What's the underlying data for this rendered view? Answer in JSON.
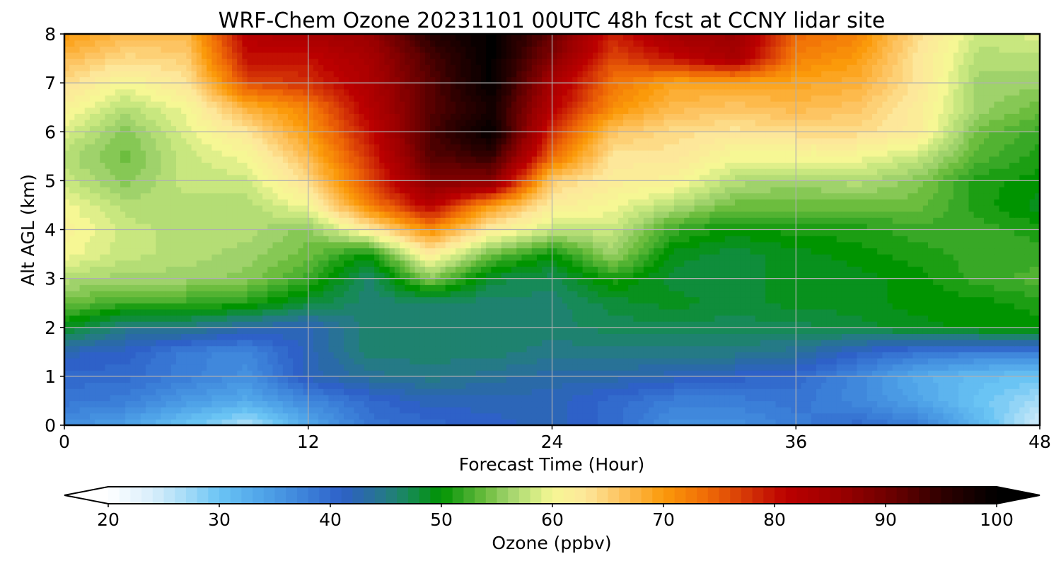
{
  "chart_data": {
    "type": "heatmap",
    "title": "WRF-Chem Ozone  20231101 00UTC 48h fcst at CCNY lidar site",
    "xlabel": "Forecast Time (Hour)",
    "ylabel": "Alt AGL (km)",
    "xlim": [
      0,
      48
    ],
    "ylim": [
      0,
      8
    ],
    "x_ticks": [
      "0",
      "12",
      "24",
      "36",
      "48"
    ],
    "y_ticks": [
      "0",
      "1",
      "2",
      "3",
      "4",
      "5",
      "6",
      "7",
      "8"
    ],
    "grid": true,
    "x": [
      0,
      3,
      6,
      9,
      12,
      15,
      18,
      21,
      24,
      27,
      30,
      33,
      36,
      39,
      42,
      45,
      48
    ],
    "y": [
      0,
      0.5,
      1,
      1.5,
      2,
      2.5,
      3,
      3.5,
      4,
      4.5,
      5,
      5.5,
      6,
      6.5,
      7,
      7.5,
      8
    ],
    "z": [
      [
        36,
        34,
        30,
        26,
        33,
        39,
        40,
        41,
        42,
        40,
        36,
        36,
        38,
        40,
        38,
        32,
        24
      ],
      [
        39,
        38,
        35,
        33,
        37,
        40,
        42,
        42,
        42,
        40,
        38,
        38,
        39,
        37,
        34,
        30,
        27
      ],
      [
        40,
        40,
        38,
        36,
        42,
        44,
        45,
        44,
        43,
        43,
        42,
        41,
        40,
        37,
        33,
        31,
        30
      ],
      [
        42,
        41,
        38,
        37,
        42,
        46,
        46,
        46,
        45,
        45,
        45,
        45,
        44,
        41,
        39,
        38,
        38
      ],
      [
        49,
        45,
        45,
        43,
        42,
        46,
        46,
        46,
        46,
        47,
        47,
        47,
        47,
        48,
        49,
        50,
        50
      ],
      [
        54,
        52,
        52,
        51,
        48,
        46,
        46,
        46,
        46,
        48,
        49,
        48,
        49,
        49,
        50,
        50,
        51
      ],
      [
        57,
        56,
        56,
        55,
        52,
        46,
        55,
        48,
        47,
        51,
        48,
        48,
        49,
        49,
        50,
        52,
        53
      ],
      [
        60,
        58,
        57,
        56,
        54,
        50,
        62,
        54,
        50,
        56,
        49,
        48,
        49,
        50,
        51,
        52,
        52
      ],
      [
        61,
        58,
        57,
        57,
        55,
        62,
        71,
        62,
        58,
        58,
        52,
        50,
        51,
        51,
        52,
        52,
        51
      ],
      [
        60,
        57,
        57,
        57,
        60,
        72,
        82,
        70,
        62,
        60,
        57,
        54,
        54,
        54,
        54,
        51,
        49
      ],
      [
        58,
        55,
        58,
        58,
        64,
        76,
        88,
        88,
        65,
        62,
        61,
        57,
        56,
        57,
        55,
        51,
        50
      ],
      [
        57,
        54,
        58,
        60,
        67,
        78,
        92,
        95,
        74,
        63,
        63,
        60,
        60,
        60,
        58,
        53,
        51
      ],
      [
        59,
        55,
        59,
        63,
        70,
        80,
        93,
        100,
        78,
        66,
        64,
        63,
        64,
        64,
        62,
        54,
        52
      ],
      [
        61,
        57,
        60,
        68,
        72,
        82,
        92,
        98,
        82,
        71,
        67,
        66,
        67,
        66,
        62,
        56,
        54
      ],
      [
        64,
        60,
        63,
        76,
        78,
        83,
        92,
        100,
        84,
        73,
        69,
        69,
        69,
        68,
        63,
        56,
        56
      ],
      [
        67,
        64,
        65,
        80,
        80,
        84,
        93,
        100,
        88,
        76,
        80,
        84,
        72,
        70,
        63,
        57,
        57
      ],
      [
        70,
        67,
        67,
        82,
        84,
        86,
        96,
        100,
        91,
        79,
        85,
        86,
        74,
        72,
        64,
        58,
        59
      ]
    ],
    "colorbar": {
      "label": "Ozone  (ppbv)",
      "min": 20,
      "max": 100,
      "ticks": [
        "20",
        "30",
        "40",
        "50",
        "60",
        "70",
        "80",
        "90",
        "100"
      ],
      "extend": "both",
      "orientation": "horizontal",
      "placement": "bottom"
    },
    "colormap": [
      [
        20,
        "#ffffff"
      ],
      [
        24,
        "#d8eefb"
      ],
      [
        27,
        "#a6dcf7"
      ],
      [
        30,
        "#6ac4f4"
      ],
      [
        34,
        "#4fa3e8"
      ],
      [
        38,
        "#3b7fd8"
      ],
      [
        41,
        "#2e61c8"
      ],
      [
        43,
        "#2a6aa8"
      ],
      [
        45,
        "#257a86"
      ],
      [
        47,
        "#178a58"
      ],
      [
        50,
        "#009400"
      ],
      [
        52,
        "#38a826"
      ],
      [
        54,
        "#6cbd3e"
      ],
      [
        56,
        "#9fd26b"
      ],
      [
        58,
        "#c8e77f"
      ],
      [
        60,
        "#f6f794"
      ],
      [
        63,
        "#fde79a"
      ],
      [
        66,
        "#fdc462"
      ],
      [
        70,
        "#fb9a0a"
      ],
      [
        74,
        "#ef6a06"
      ],
      [
        78,
        "#d12e06"
      ],
      [
        81,
        "#bb0000"
      ],
      [
        86,
        "#9a0000"
      ],
      [
        91,
        "#660000"
      ],
      [
        95,
        "#300000"
      ],
      [
        100,
        "#000000"
      ]
    ]
  }
}
